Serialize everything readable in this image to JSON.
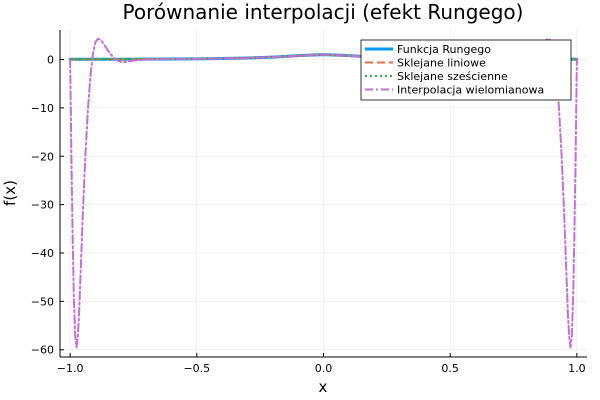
{
  "chart_data": {
    "type": "line",
    "title": "Porównanie interpolacji (efekt Rungego)",
    "xlabel": "x",
    "ylabel": "f(x)",
    "xlim": [
      -1.04,
      1.04
    ],
    "ylim": [
      -61.5,
      6.1
    ],
    "xticks": [
      -1.0,
      -0.5,
      0.0,
      0.5,
      1.0
    ],
    "xtick_labels": [
      "−1.0",
      "−0.5",
      "0.0",
      "0.5",
      "1.0"
    ],
    "yticks": [
      0,
      -10,
      -20,
      -30,
      -40,
      -50,
      -60
    ],
    "ytick_labels": [
      "0",
      "−10",
      "−20",
      "−30",
      "−40",
      "−50",
      "−60"
    ],
    "grid": true,
    "legend_position": "top-right",
    "series": [
      {
        "name": "Funkcja Rungego",
        "color": "#009af9",
        "style": "solid",
        "x": [
          -1.0,
          -0.9,
          -0.8,
          -0.7,
          -0.6,
          -0.5,
          -0.4,
          -0.3,
          -0.2,
          -0.1,
          0.0,
          0.1,
          0.2,
          0.3,
          0.4,
          0.5,
          0.6,
          0.7,
          0.8,
          0.9,
          1.0
        ],
        "y": [
          0.04,
          0.05,
          0.06,
          0.08,
          0.1,
          0.14,
          0.2,
          0.31,
          0.5,
          0.8,
          1.0,
          0.8,
          0.5,
          0.31,
          0.2,
          0.14,
          0.1,
          0.08,
          0.06,
          0.05,
          0.04
        ]
      },
      {
        "name": "Sklejane liniowe",
        "color": "#e26f46",
        "style": "dash",
        "x": [
          -1.0,
          -0.8,
          -0.6,
          -0.4,
          -0.2,
          0.0,
          0.2,
          0.4,
          0.6,
          0.8,
          1.0
        ],
        "y": [
          0.04,
          0.06,
          0.1,
          0.2,
          0.5,
          1.0,
          0.5,
          0.2,
          0.1,
          0.06,
          0.04
        ]
      },
      {
        "name": "Sklejane sześcienne",
        "color": "#3da44d",
        "style": "dot",
        "x": [
          -1.0,
          -0.9,
          -0.8,
          -0.7,
          -0.6,
          -0.5,
          -0.4,
          -0.3,
          -0.2,
          -0.1,
          0.0,
          0.1,
          0.2,
          0.3,
          0.4,
          0.5,
          0.6,
          0.7,
          0.8,
          0.9,
          1.0
        ],
        "y": [
          0.04,
          0.05,
          0.06,
          0.08,
          0.1,
          0.14,
          0.2,
          0.3,
          0.5,
          0.82,
          1.0,
          0.82,
          0.5,
          0.3,
          0.2,
          0.14,
          0.1,
          0.08,
          0.06,
          0.05,
          0.04
        ]
      },
      {
        "name": "Interpolacja wielomianowa",
        "color": "#c271d2",
        "style": "dashdot",
        "x": [
          -1.0,
          -0.995,
          -0.99,
          -0.985,
          -0.98,
          -0.975,
          -0.97,
          -0.965,
          -0.96,
          -0.955,
          -0.95,
          -0.94,
          -0.93,
          -0.92,
          -0.91,
          -0.9,
          -0.89,
          -0.88,
          -0.87,
          -0.86,
          -0.85,
          -0.84,
          -0.83,
          -0.82,
          -0.81,
          -0.8,
          -0.79,
          -0.78,
          -0.77,
          -0.76,
          -0.75,
          -0.7,
          -0.6,
          -0.5,
          -0.4,
          -0.3,
          -0.2,
          -0.1,
          0.0,
          0.1,
          0.2,
          0.3,
          0.4,
          0.5,
          0.6,
          0.7,
          0.75,
          0.76,
          0.77,
          0.78,
          0.79,
          0.8,
          0.81,
          0.82,
          0.83,
          0.84,
          0.85,
          0.86,
          0.87,
          0.88,
          0.89,
          0.9,
          0.91,
          0.92,
          0.93,
          0.94,
          0.95,
          0.955,
          0.96,
          0.965,
          0.97,
          0.975,
          0.98,
          0.985,
          0.99,
          0.995,
          1.0
        ],
        "y": [
          0.04,
          -20.0,
          -37.0,
          -50.0,
          -57.0,
          -59.5,
          -57.5,
          -53.0,
          -46.0,
          -39.0,
          -32.0,
          -20.0,
          -10.5,
          -3.5,
          1.2,
          3.6,
          4.3,
          4.1,
          3.4,
          2.6,
          1.8,
          1.1,
          0.5,
          0.1,
          -0.3,
          -0.5,
          -0.55,
          -0.5,
          -0.4,
          -0.3,
          -0.2,
          0.0,
          0.12,
          0.1,
          0.22,
          0.28,
          0.52,
          0.78,
          1.0,
          0.78,
          0.52,
          0.28,
          0.22,
          0.1,
          0.12,
          0.0,
          -0.2,
          -0.3,
          -0.4,
          -0.5,
          -0.55,
          -0.5,
          -0.3,
          0.1,
          0.5,
          1.1,
          1.8,
          2.6,
          3.4,
          4.1,
          4.3,
          3.6,
          1.2,
          -3.5,
          -10.5,
          -20.0,
          -32.0,
          -39.0,
          -46.0,
          -53.0,
          -57.5,
          -59.5,
          -57.0,
          -50.0,
          -37.0,
          -20.0,
          0.04
        ]
      }
    ]
  }
}
